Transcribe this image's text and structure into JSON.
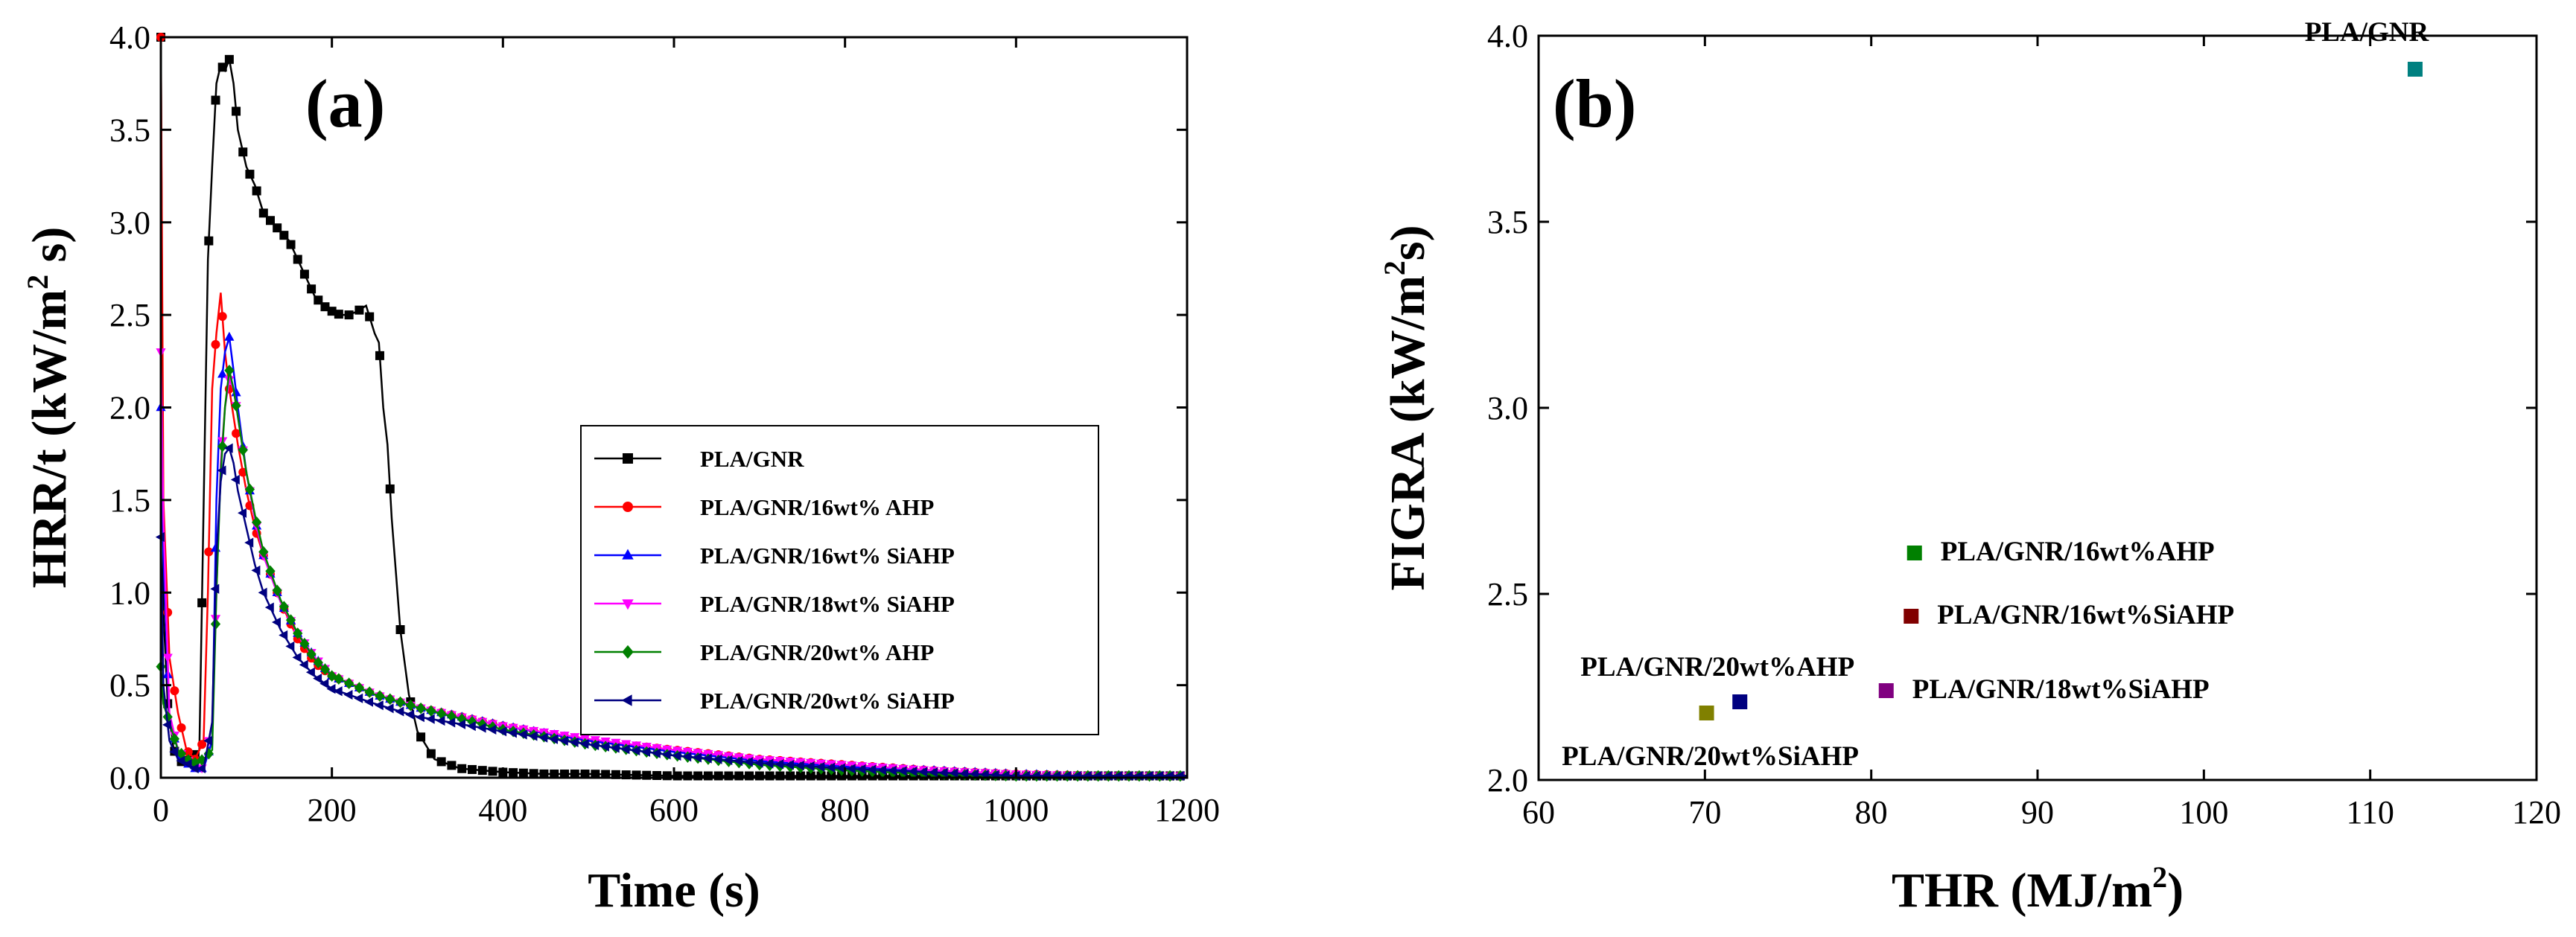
{
  "chart_data": [
    {
      "type": "line",
      "panel_label": "(a)",
      "xlabel": "Time (s)",
      "ylabel_main": "HRR/t (kW/m",
      "ylabel_sup": "2",
      "ylabel_end": " s)",
      "xlim": [
        0,
        1200
      ],
      "ylim": [
        0,
        4.0
      ],
      "xticks": [
        "0",
        "200",
        "400",
        "600",
        "800",
        "1000",
        "1200"
      ],
      "yticks": [
        "0.0",
        "0.5",
        "1.0",
        "1.5",
        "2.0",
        "2.5",
        "3.0",
        "3.5",
        "4.0"
      ],
      "legend_position": "center-right",
      "series": [
        {
          "name": "PLA/GNR",
          "color": "#000000",
          "marker": "square",
          "x": [
            0,
            3,
            8,
            15,
            25,
            35,
            45,
            55,
            60,
            65,
            70,
            75,
            80,
            85,
            90,
            100,
            110,
            120,
            130,
            140,
            150,
            160,
            170,
            180,
            190,
            200,
            210,
            220,
            230,
            240,
            250,
            255,
            260,
            265,
            270,
            275,
            280,
            290,
            300,
            320,
            350,
            400,
            450,
            500,
            600,
            800,
            1000,
            1200
          ],
          "y": [
            4.0,
            0.9,
            0.4,
            0.15,
            0.08,
            0.1,
            0.15,
            2.8,
            3.3,
            3.75,
            3.85,
            3.82,
            3.88,
            3.75,
            3.5,
            3.3,
            3.2,
            3.05,
            3.0,
            2.95,
            2.9,
            2.8,
            2.7,
            2.6,
            2.55,
            2.52,
            2.5,
            2.5,
            2.52,
            2.55,
            2.4,
            2.35,
            2.0,
            1.8,
            1.4,
            1.1,
            0.8,
            0.45,
            0.25,
            0.1,
            0.05,
            0.03,
            0.02,
            0.02,
            0.01,
            0.01,
            0.01,
            0.01
          ]
        },
        {
          "name": "PLA/GNR/16wt% AHP",
          "color": "#ff0000",
          "marker": "circle",
          "x": [
            0,
            3,
            10,
            20,
            30,
            40,
            50,
            55,
            60,
            65,
            70,
            75,
            80,
            90,
            100,
            110,
            120,
            140,
            160,
            180,
            200,
            250,
            300,
            400,
            500,
            600,
            700,
            800,
            900,
            1000,
            1100,
            1200
          ],
          "y": [
            4.0,
            1.5,
            0.65,
            0.35,
            0.15,
            0.1,
            0.2,
            1.0,
            2.1,
            2.4,
            2.62,
            2.3,
            2.1,
            1.8,
            1.55,
            1.35,
            1.2,
            0.95,
            0.75,
            0.62,
            0.55,
            0.45,
            0.38,
            0.28,
            0.2,
            0.15,
            0.1,
            0.07,
            0.04,
            0.02,
            0.01,
            0.01
          ]
        },
        {
          "name": "PLA/GNR/16wt% SiAHP",
          "color": "#0000ff",
          "marker": "triangle-up",
          "x": [
            0,
            3,
            10,
            20,
            30,
            40,
            50,
            60,
            65,
            70,
            75,
            80,
            85,
            90,
            100,
            110,
            120,
            140,
            160,
            180,
            200,
            250,
            300,
            400,
            500,
            600,
            700,
            800,
            900,
            1000,
            1100,
            1200
          ],
          "y": [
            2.0,
            1.2,
            0.3,
            0.15,
            0.08,
            0.05,
            0.05,
            0.2,
            1.5,
            2.1,
            2.3,
            2.38,
            2.2,
            2.0,
            1.65,
            1.4,
            1.2,
            0.95,
            0.78,
            0.65,
            0.55,
            0.45,
            0.38,
            0.28,
            0.2,
            0.14,
            0.09,
            0.06,
            0.04,
            0.02,
            0.01,
            0.01
          ]
        },
        {
          "name": "PLA/GNR/18wt% SiAHP",
          "color": "#ff00ff",
          "marker": "triangle-down",
          "x": [
            0,
            3,
            10,
            20,
            30,
            40,
            50,
            60,
            70,
            75,
            80,
            85,
            90,
            100,
            110,
            120,
            140,
            160,
            180,
            200,
            250,
            300,
            400,
            500,
            600,
            700,
            800,
            900,
            1000,
            1100,
            1200
          ],
          "y": [
            2.3,
            1.4,
            0.35,
            0.15,
            0.1,
            0.06,
            0.05,
            0.3,
            1.7,
            2.0,
            2.15,
            2.1,
            1.95,
            1.65,
            1.4,
            1.2,
            0.95,
            0.78,
            0.65,
            0.55,
            0.45,
            0.38,
            0.28,
            0.21,
            0.15,
            0.1,
            0.07,
            0.04,
            0.02,
            0.01,
            0.01
          ]
        },
        {
          "name": "PLA/GNR/20wt% AHP",
          "color": "#008000",
          "marker": "diamond",
          "x": [
            0,
            3,
            10,
            20,
            30,
            40,
            50,
            60,
            65,
            70,
            75,
            80,
            85,
            90,
            100,
            110,
            120,
            140,
            160,
            180,
            200,
            250,
            300,
            400,
            500,
            600,
            700,
            800,
            900,
            1000,
            1100,
            1200
          ],
          "y": [
            0.6,
            0.4,
            0.3,
            0.15,
            0.1,
            0.08,
            0.1,
            0.15,
            1.0,
            1.65,
            2.0,
            2.2,
            2.1,
            1.95,
            1.65,
            1.42,
            1.22,
            0.96,
            0.78,
            0.64,
            0.55,
            0.45,
            0.38,
            0.26,
            0.18,
            0.12,
            0.07,
            0.04,
            0.02,
            0.01,
            0.01,
            0.01
          ]
        },
        {
          "name": "PLA/GNR/20wt% SiAHP",
          "color": "#000080",
          "marker": "triangle-left",
          "x": [
            0,
            3,
            10,
            20,
            30,
            40,
            50,
            60,
            65,
            70,
            75,
            80,
            85,
            90,
            100,
            110,
            120,
            140,
            160,
            180,
            200,
            250,
            300,
            400,
            500,
            600,
            700,
            800,
            900,
            1000,
            1100,
            1200
          ],
          "y": [
            1.3,
            0.5,
            0.2,
            0.1,
            0.08,
            0.05,
            0.05,
            0.3,
            1.2,
            1.6,
            1.75,
            1.78,
            1.7,
            1.55,
            1.35,
            1.15,
            1.0,
            0.8,
            0.65,
            0.55,
            0.48,
            0.4,
            0.33,
            0.25,
            0.18,
            0.12,
            0.08,
            0.05,
            0.03,
            0.01,
            0.01,
            0.01
          ]
        }
      ]
    },
    {
      "type": "scatter",
      "panel_label": "(b)",
      "xlabel_main": "THR (MJ/m",
      "xlabel_sup": "2",
      "xlabel_end": ")",
      "ylabel_main": "FIGRA (kW/m",
      "ylabel_sup": "2",
      "ylabel_end": "s)",
      "xlim": [
        60,
        120
      ],
      "ylim": [
        2.0,
        4.0
      ],
      "xticks": [
        "60",
        "70",
        "80",
        "90",
        "100",
        "110",
        "120"
      ],
      "yticks": [
        "2.0",
        "2.5",
        "3.0",
        "3.5",
        "4.0"
      ],
      "points": [
        {
          "label": "PLA/GNR",
          "x": 112.7,
          "y": 3.91,
          "color": "#008080",
          "label_anchor": "above"
        },
        {
          "label": "PLA/GNR/16wt%AHP",
          "x": 82.6,
          "y": 2.61,
          "color": "#008000",
          "label_anchor": "right"
        },
        {
          "label": "PLA/GNR/16wt%SiAHP",
          "x": 82.4,
          "y": 2.44,
          "color": "#800000",
          "label_anchor": "right"
        },
        {
          "label": "PLA/GNR/18wt%SiAHP",
          "x": 80.9,
          "y": 2.24,
          "color": "#800080",
          "label_anchor": "right"
        },
        {
          "label": "PLA/GNR/20wt%AHP",
          "x": 72.1,
          "y": 2.21,
          "color": "#000080",
          "label_anchor": "above"
        },
        {
          "label": "PLA/GNR/20wt%SiAHP",
          "x": 70.1,
          "y": 2.18,
          "color": "#808000",
          "label_anchor": "below"
        }
      ]
    }
  ]
}
